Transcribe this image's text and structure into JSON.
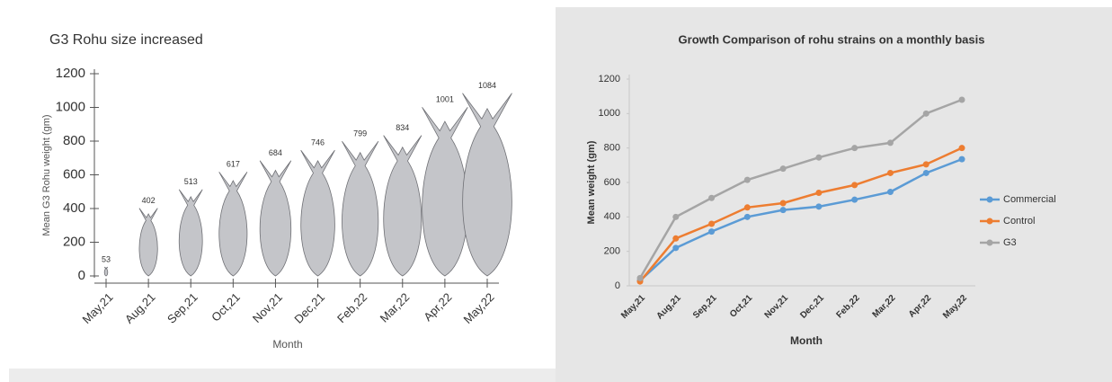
{
  "chart_data": [
    {
      "type": "pictograph",
      "title": "G3 Rohu size increased",
      "y_label": "Mean G3 Rohu weight (gm)",
      "x_label": "Month",
      "categories": [
        "May,21",
        "Aug,21",
        "Sep,21",
        "Oct,21",
        "Nov,21",
        "Dec,21",
        "Feb,22",
        "Mar,22",
        "Apr,22",
        "May,22"
      ],
      "values": [
        53,
        402,
        513,
        617,
        684,
        746,
        799,
        834,
        1001,
        1084
      ],
      "color": "#c4c5c9",
      "ylim": [
        0,
        1200
      ],
      "yticks": [
        0,
        200,
        400,
        600,
        800,
        1000,
        1200
      ]
    },
    {
      "type": "line",
      "title": "Growth Comparison of rohu strains on a monthly basis",
      "y_label": "Mean weight (gm)",
      "x_label": "Month",
      "categories": [
        "May,21",
        "Aug,21",
        "Sep,21",
        "Oct,21",
        "Nov,21",
        "Dec,21",
        "Feb,22",
        "Mar,22",
        "Apr,22",
        "May,22"
      ],
      "series": [
        {
          "name": "Commercial",
          "color": "#5b9bd5",
          "values": [
            30,
            220,
            315,
            400,
            440,
            460,
            500,
            545,
            655,
            735
          ]
        },
        {
          "name": "Control",
          "color": "#ed7d31",
          "values": [
            25,
            275,
            360,
            455,
            480,
            540,
            585,
            655,
            705,
            800
          ]
        },
        {
          "name": "G3",
          "color": "#a5a5a5",
          "values": [
            45,
            400,
            510,
            615,
            680,
            745,
            800,
            830,
            1000,
            1080
          ]
        }
      ],
      "ylim": [
        0,
        1200
      ],
      "yticks": [
        0,
        200,
        400,
        600,
        800,
        1000,
        1200
      ],
      "legend": "right"
    }
  ]
}
